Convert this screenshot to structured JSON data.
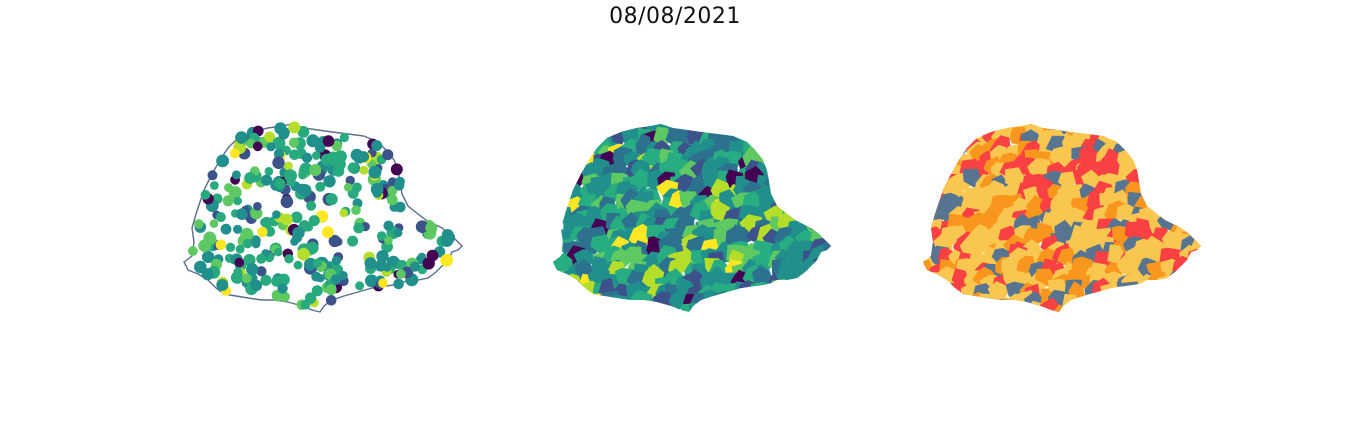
{
  "title": "08/08/2021",
  "panels": [
    {
      "id": "points",
      "kind": "proportional-points",
      "outline_color": "#5a6e8c",
      "palette": [
        "#440154",
        "#3b528b",
        "#21908d",
        "#29a97e",
        "#5ec962",
        "#b5de2b",
        "#fde725"
      ]
    },
    {
      "id": "choropleth",
      "kind": "continuous-choropleth",
      "palette": [
        "#440154",
        "#3b528b",
        "#2c728e",
        "#21908d",
        "#27ad81",
        "#5ec962",
        "#b5de2b",
        "#fde725"
      ]
    },
    {
      "id": "classes",
      "kind": "categorical-choropleth",
      "palette": [
        "#f9c74f",
        "#f94144",
        "#f8961e",
        "#577590"
      ]
    }
  ]
}
